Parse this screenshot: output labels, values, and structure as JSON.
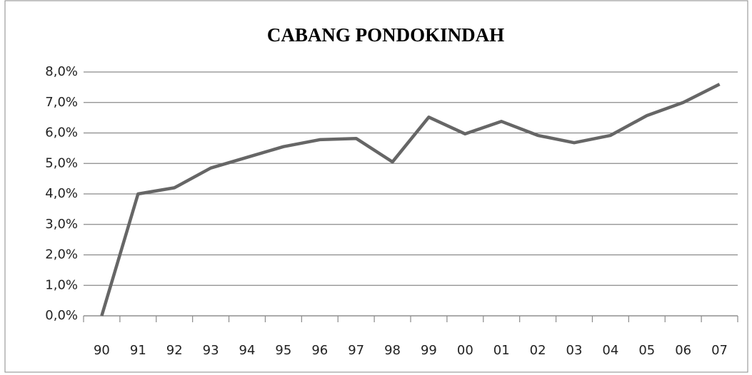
{
  "chart_data": {
    "type": "line",
    "title": "CABANG PONDOKINDAH",
    "categories": [
      "90",
      "91",
      "92",
      "93",
      "94",
      "95",
      "96",
      "97",
      "98",
      "99",
      "00",
      "01",
      "02",
      "03",
      "04",
      "05",
      "06",
      "07"
    ],
    "series": [
      {
        "name": "CABANG PONDOKINDAH",
        "color": "#666666",
        "values": [
          0,
          4.0,
          4.2,
          4.85,
          5.2,
          5.55,
          5.78,
          5.82,
          5.05,
          6.52,
          5.97,
          6.38,
          5.92,
          5.68,
          5.92,
          6.57,
          7.0,
          7.6
        ]
      }
    ],
    "ylim": [
      0,
      8
    ],
    "yticks": [
      {
        "value": 0,
        "label": "0,0%"
      },
      {
        "value": 1,
        "label": "1,0%"
      },
      {
        "value": 2,
        "label": "2,0%"
      },
      {
        "value": 3,
        "label": "3,0%"
      },
      {
        "value": 4,
        "label": "4,0%"
      },
      {
        "value": 5,
        "label": "5,0%"
      },
      {
        "value": 6,
        "label": "6,0%"
      },
      {
        "value": 7,
        "label": "7,0%"
      },
      {
        "value": 8,
        "label": "8,0%"
      }
    ],
    "grid": true
  }
}
